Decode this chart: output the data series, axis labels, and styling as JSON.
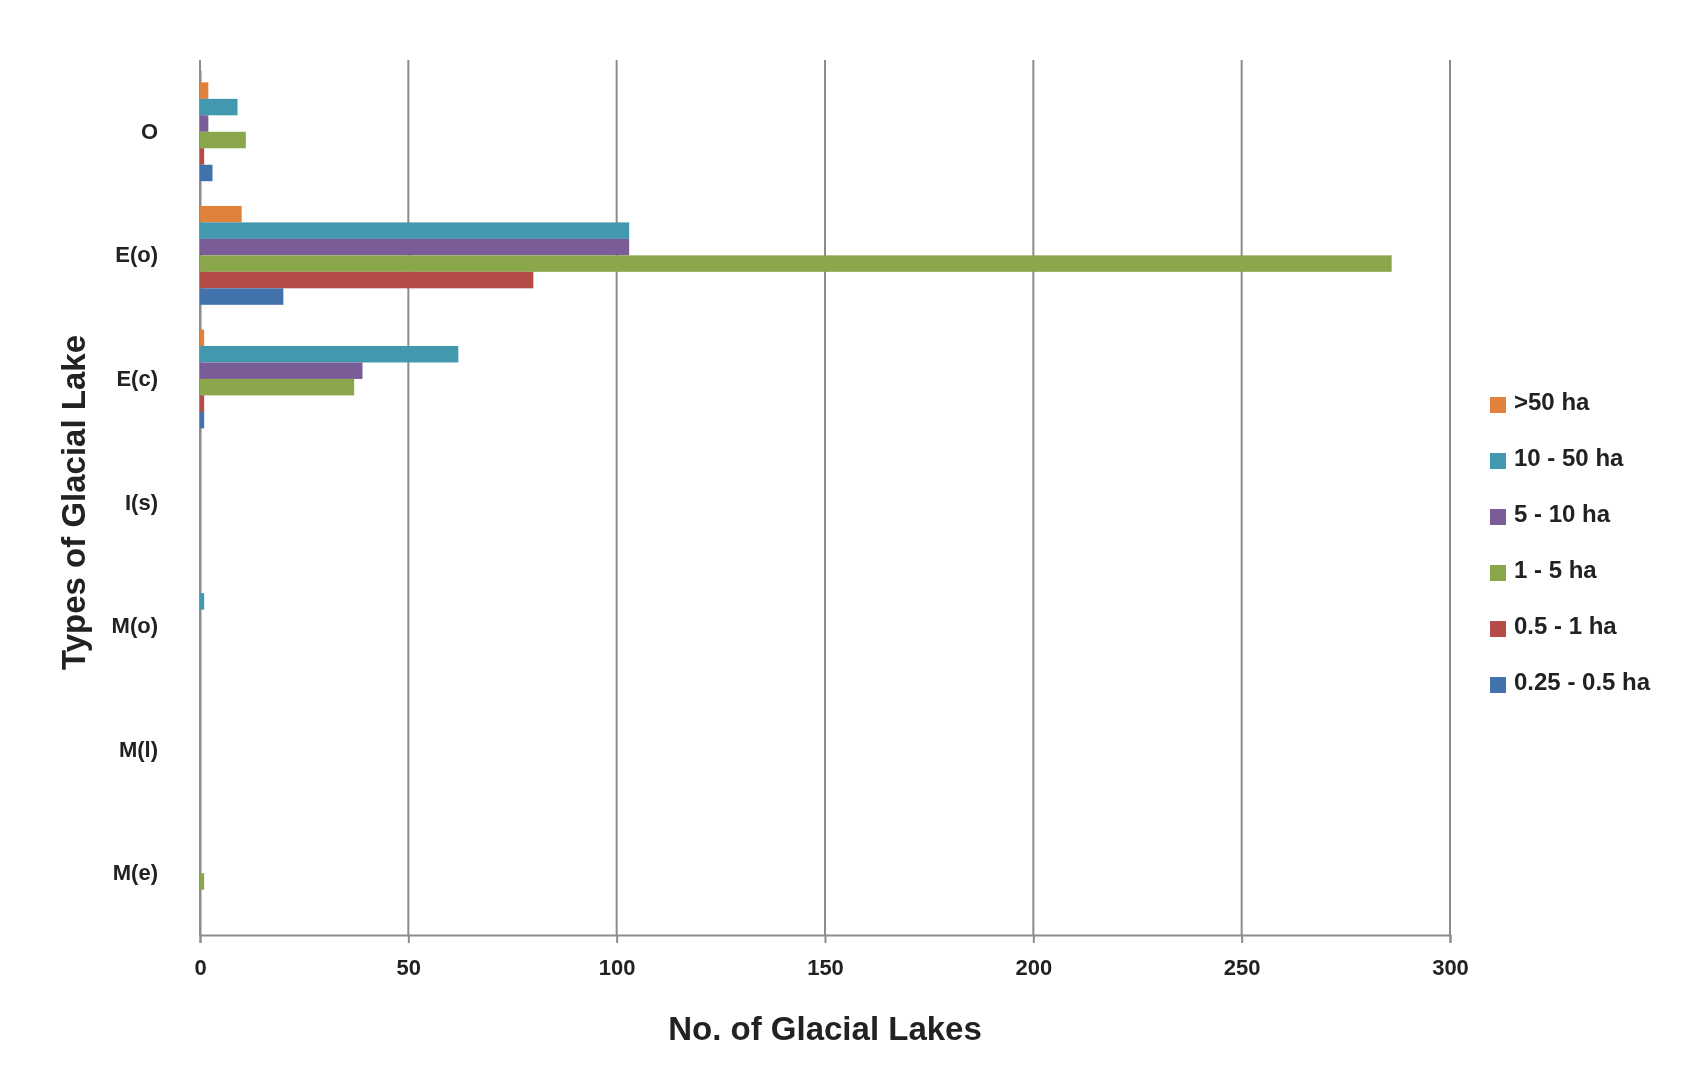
{
  "chart_data": {
    "type": "bar",
    "orientation": "horizontal",
    "xlabel": "No. of Glacial Lakes",
    "ylabel": "Types of Glacial Lake",
    "categories": [
      "O",
      "E(o)",
      "E(c)",
      "I(s)",
      "M(o)",
      "M(l)",
      "M(e)"
    ],
    "series": [
      {
        "name": ">50 ha",
        "color": "#e0823a",
        "values": [
          2,
          10,
          1,
          0,
          0,
          0,
          0
        ]
      },
      {
        "name": "10 - 50 ha",
        "color": "#4198af",
        "values": [
          9,
          103,
          62,
          0,
          1,
          0,
          0
        ]
      },
      {
        "name": "5 - 10 ha",
        "color": "#7a5c97",
        "values": [
          2,
          103,
          39,
          0,
          0,
          0,
          0
        ]
      },
      {
        "name": "1 - 5 ha",
        "color": "#8aa74c",
        "values": [
          11,
          286,
          37,
          0,
          0,
          0,
          1
        ]
      },
      {
        "name": "0.5 - 1 ha",
        "color": "#b54b47",
        "values": [
          1,
          80,
          1,
          0,
          0,
          0,
          0
        ]
      },
      {
        "name": "0.25 - 0.5 ha",
        "color": "#4272ab",
        "values": [
          3,
          20,
          1,
          0,
          0,
          0,
          0
        ]
      }
    ],
    "xlim": [
      0,
      300
    ],
    "xticks": [
      0,
      50,
      100,
      150,
      200,
      250,
      300
    ],
    "grid": "x",
    "legend": "right"
  }
}
